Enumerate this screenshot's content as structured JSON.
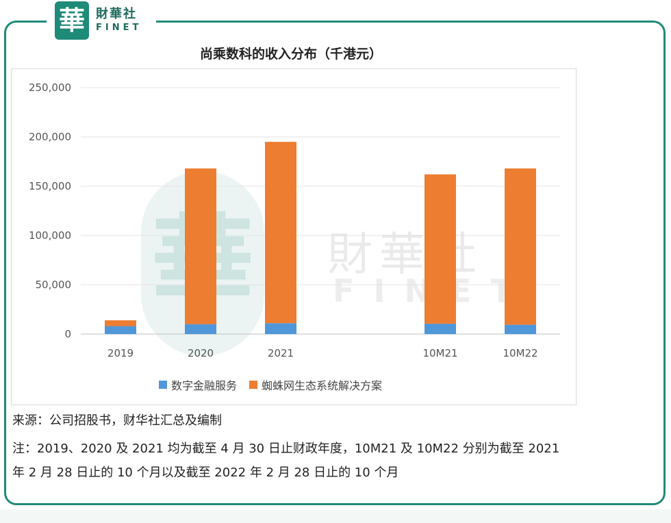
{
  "logo": {
    "mark": "華",
    "name_cn": "財華社",
    "name_en": "FINET"
  },
  "watermark": {
    "mark": "華",
    "cn": "財華社",
    "en": "FINET"
  },
  "chart_data": {
    "type": "bar",
    "stacked": true,
    "title": "尚乘数科的收入分布（千港元）",
    "categories": [
      "2019",
      "2020",
      "2021",
      "10M21",
      "10M22"
    ],
    "series": [
      {
        "name": "数字金融服务",
        "color": "#4f97d8",
        "values": [
          8000,
          10000,
          11000,
          10500,
          9500
        ]
      },
      {
        "name": "蜘蛛网生态系统解决方案",
        "color": "#ed7d31",
        "values": [
          6000,
          158000,
          184000,
          151500,
          158500
        ]
      }
    ],
    "ylim": [
      0,
      250000
    ],
    "yticks": [
      0,
      50000,
      100000,
      150000,
      200000,
      250000
    ],
    "ytick_labels": [
      "0",
      "50,000",
      "100,000",
      "150,000",
      "200,000",
      "250,000"
    ],
    "grid": true,
    "legend": "bottom"
  },
  "notes": {
    "source": "来源：公司招股书，财华社汇总及编制",
    "note_line1": "注：2019、2020 及 2021 均为截至 4 月 30 日止财政年度，10M21 及 10M22 分别为截至 2021",
    "note_line2": "年 2 月 28 日止的 10 个月以及截至 2022 年 2 月 28 日止的 10 个月"
  }
}
